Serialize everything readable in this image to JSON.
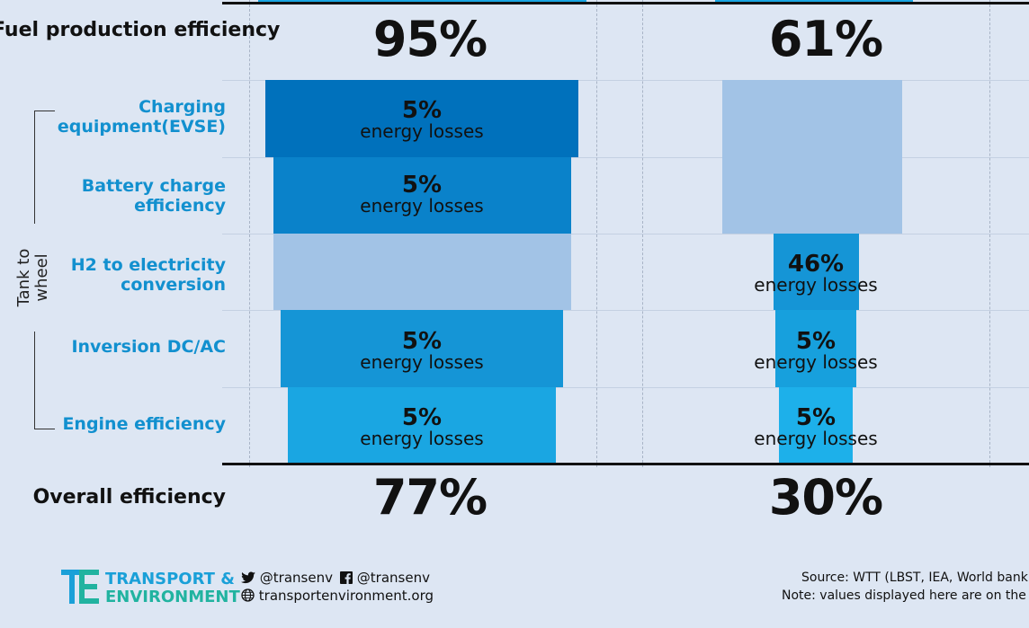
{
  "rows": {
    "fuel_production": "Fuel production efficiency",
    "overall": "Overall efficiency",
    "tank_to_wheel": "Tank to wheel",
    "stages": [
      {
        "line1": "Charging",
        "line2": "equipment(EVSE)"
      },
      {
        "line1": "Battery charge",
        "line2": "efficiency"
      },
      {
        "line1": "H2 to electricity",
        "line2": "conversion"
      },
      {
        "line1": "Inversion DC/AC",
        "line2": ""
      },
      {
        "line1": "Engine efficiency",
        "line2": ""
      }
    ]
  },
  "loss_label": "energy losses",
  "chart_data": {
    "type": "bar",
    "columns": [
      {
        "fuel_production_efficiency": "95%",
        "overall_efficiency": "77%",
        "stages": [
          {
            "stage": "Charging equipment(EVSE)",
            "loss": "5%",
            "applies": true
          },
          {
            "stage": "Battery charge efficiency",
            "loss": "5%",
            "applies": true
          },
          {
            "stage": "H2 to electricity conversion",
            "loss": null,
            "applies": false
          },
          {
            "stage": "Inversion DC/AC",
            "loss": "5%",
            "applies": true
          },
          {
            "stage": "Engine efficiency",
            "loss": "5%",
            "applies": true
          }
        ]
      },
      {
        "fuel_production_efficiency": "61%",
        "overall_efficiency": "30%",
        "stages": [
          {
            "stage": "Charging equipment(EVSE)",
            "loss": null,
            "applies": false
          },
          {
            "stage": "Battery charge efficiency",
            "loss": null,
            "applies": false
          },
          {
            "stage": "H2 to electricity conversion",
            "loss": "46%",
            "applies": true
          },
          {
            "stage": "Inversion DC/AC",
            "loss": "5%",
            "applies": true
          },
          {
            "stage": "Engine efficiency",
            "loss": "5%",
            "applies": true
          }
        ]
      }
    ],
    "colors": {
      "stage_1": "#0071bc",
      "stage_2": "#0a82ca",
      "stage_3": "#1595d6",
      "stage_4": "#1aa6e2",
      "inactive": "#a2c3e6"
    }
  },
  "footer": {
    "logo_line1": "TRANSPORT &",
    "logo_line2": "ENVIRONMENT",
    "twitter": "@transenv",
    "facebook": "@transenv",
    "website": "transportenvironment.org",
    "source": "Source: WTT (LBST, IEA, World bank)",
    "note": "Note: values displayed here are on the hig"
  }
}
